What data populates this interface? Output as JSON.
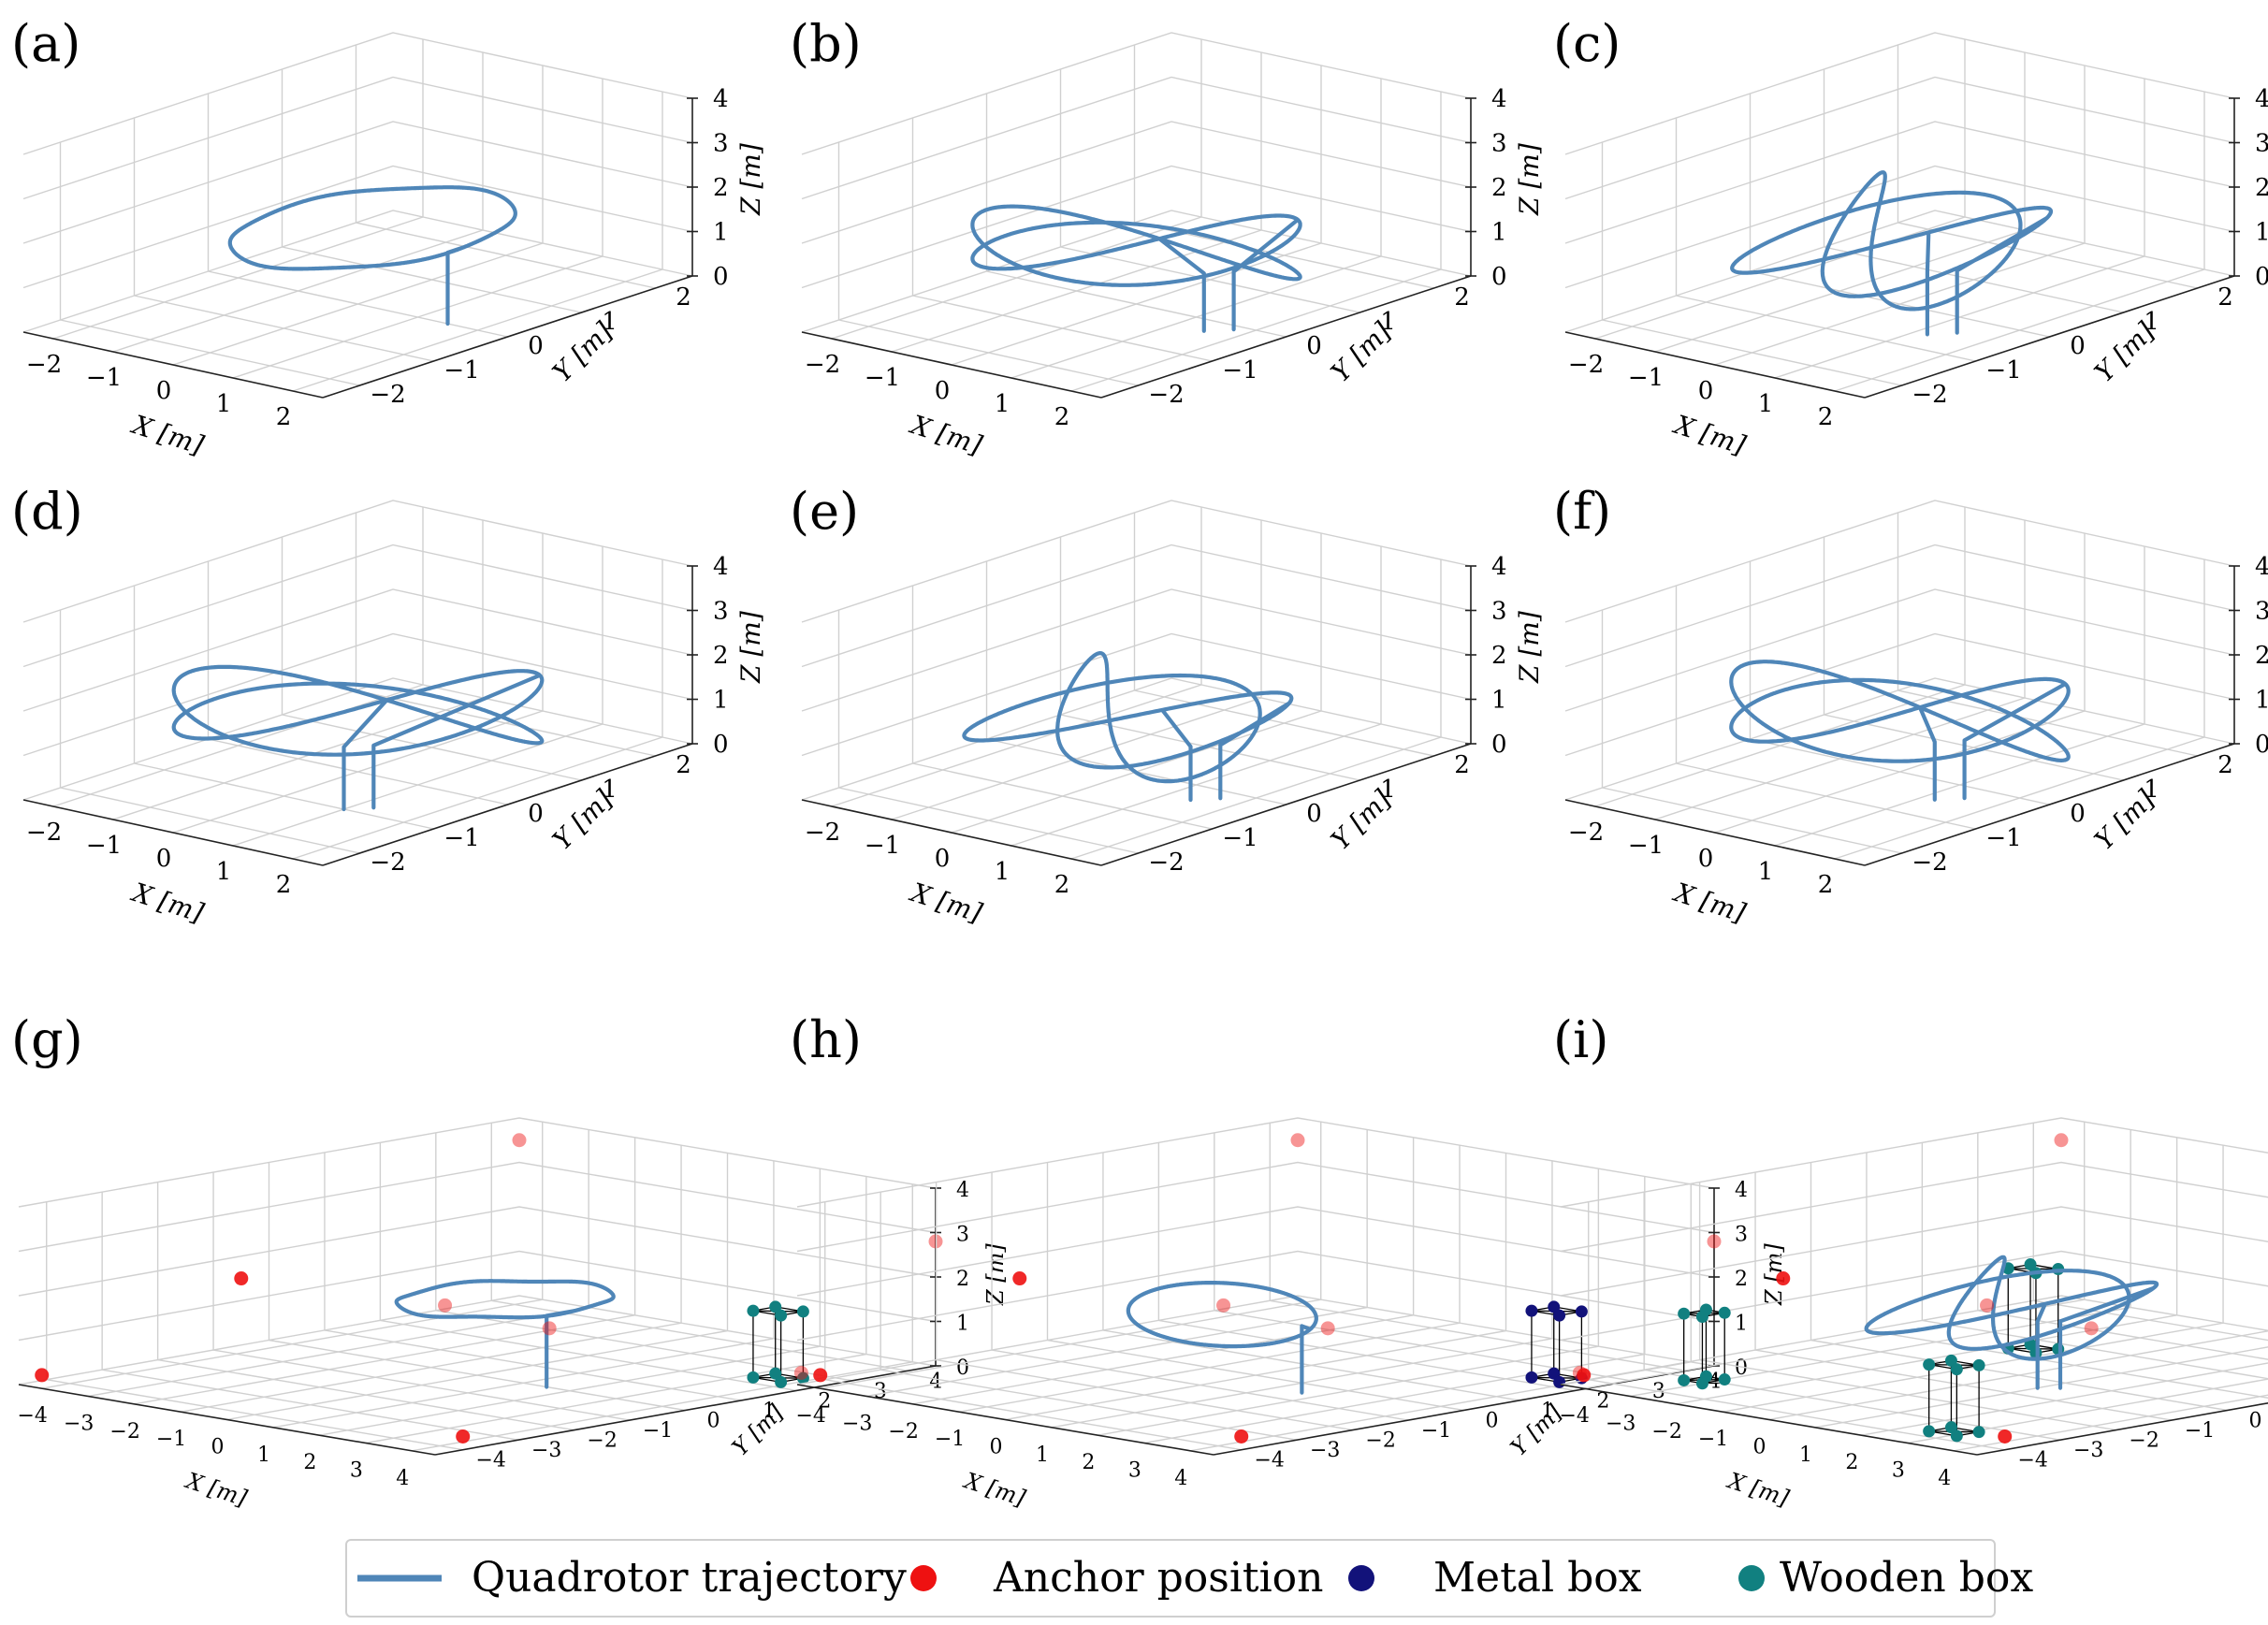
{
  "colors": {
    "trajectory": "#4f86b8",
    "anchor": "#ee1111",
    "metal": "#12127a",
    "wooden": "#118080",
    "grid": "#d0d0d0",
    "box_edge": "#000000"
  },
  "legend": {
    "placement": "bottom-center",
    "items": [
      {
        "label": "Quadrotor trajectory",
        "marker": "line",
        "color_key": "trajectory"
      },
      {
        "label": "Anchor position",
        "marker": "dot",
        "color_key": "anchor"
      },
      {
        "label": "Metal box",
        "marker": "dot",
        "color_key": "metal"
      },
      {
        "label": "Wooden box",
        "marker": "dot",
        "color_key": "wooden"
      }
    ]
  },
  "chart_data": [
    {
      "panel": "(a)",
      "type": "line3d",
      "xlabel": "X [m]",
      "ylabel": "Y [m]",
      "zlabel": "Z [m]",
      "xlim": [
        -2.5,
        2.5
      ],
      "ylim": [
        -2.5,
        2.5
      ],
      "zlim": [
        0,
        4
      ],
      "xticks": [
        "−2",
        "−1",
        "0",
        "1",
        "2"
      ],
      "yticks": [
        "−2",
        "−1",
        "0",
        "1",
        "2"
      ],
      "zticks": [
        "0",
        "1",
        "2",
        "3",
        "4"
      ],
      "trajectory": {
        "shape": "circle",
        "center": [
          0,
          0.2
        ],
        "radius": 1.5,
        "height": 1.6,
        "takeoff": [
          1.5,
          0.0
        ]
      }
    },
    {
      "panel": "(b)",
      "type": "line3d",
      "xlabel": "X [m]",
      "ylabel": "Y [m]",
      "zlabel": "Z [m]",
      "xlim": [
        -2.5,
        2.5
      ],
      "ylim": [
        -2.5,
        2.5
      ],
      "zlim": [
        0,
        4
      ],
      "xticks": [
        "−2",
        "−1",
        "0",
        "1",
        "2"
      ],
      "yticks": [
        "−2",
        "−1",
        "0",
        "1",
        "2"
      ],
      "zticks": [
        "0",
        "1",
        "2",
        "3",
        "4"
      ],
      "trajectory": {
        "shape": "figure-eight",
        "rx": 1.8,
        "ry": 0.8,
        "height": 1.3,
        "amplitude_z": 0.7,
        "takeoff": [
          1.5,
          -0.3
        ]
      }
    },
    {
      "panel": "(c)",
      "type": "line3d",
      "xlabel": "X [m]",
      "ylabel": "Y [m]",
      "zlabel": "Z [m]",
      "xlim": [
        -2.5,
        2.5
      ],
      "ylim": [
        -2.5,
        2.5
      ],
      "zlim": [
        0,
        4
      ],
      "xticks": [
        "−2",
        "−1",
        "0",
        "1",
        "2"
      ],
      "yticks": [
        "−2",
        "−1",
        "0",
        "1",
        "2"
      ],
      "zticks": [
        "0",
        "1",
        "2",
        "3",
        "4"
      ],
      "trajectory": {
        "shape": "lissajous",
        "rx": 1.6,
        "ry": 1.0,
        "height": 1.4,
        "amplitude_z": 0.6,
        "takeoff": [
          1.2,
          -0.6
        ]
      }
    },
    {
      "panel": "(d)",
      "type": "line3d",
      "xlabel": "X [m]",
      "ylabel": "Y [m]",
      "zlabel": "Z [m]",
      "xlim": [
        -2.5,
        2.5
      ],
      "ylim": [
        -2.5,
        2.5
      ],
      "zlim": [
        0,
        4
      ],
      "xticks": [
        "−2",
        "−1",
        "0",
        "1",
        "2"
      ],
      "yticks": [
        "−2",
        "−1",
        "0",
        "1",
        "2"
      ],
      "zticks": [
        "0",
        "1",
        "2",
        "3",
        "4"
      ],
      "trajectory": {
        "shape": "figure-eight",
        "rx": 1.9,
        "ry": 1.0,
        "height": 1.4,
        "amplitude_z": 0.8,
        "takeoff": [
          1.0,
          -1.0
        ]
      }
    },
    {
      "panel": "(e)",
      "type": "line3d",
      "xlabel": "X [m]",
      "ylabel": "Y [m]",
      "zlabel": "Z [m]",
      "xlim": [
        -2.5,
        2.5
      ],
      "ylim": [
        -2.5,
        2.5
      ],
      "zlim": [
        0,
        4
      ],
      "xticks": [
        "−2",
        "−1",
        "0",
        "1",
        "2"
      ],
      "yticks": [
        "−2",
        "−1",
        "0",
        "1",
        "2"
      ],
      "zticks": [
        "0",
        "1",
        "2",
        "3",
        "4"
      ],
      "trajectory": {
        "shape": "lissajous",
        "rx": 1.8,
        "ry": 0.9,
        "height": 1.2,
        "amplitude_z": 0.5,
        "takeoff": [
          1.4,
          -0.4
        ]
      }
    },
    {
      "panel": "(f)",
      "type": "line3d",
      "xlabel": "X [m]",
      "ylabel": "Y [m]",
      "zlabel": "Z [m]",
      "xlim": [
        -2.5,
        2.5
      ],
      "ylim": [
        -2.5,
        2.5
      ],
      "zlim": [
        0,
        4
      ],
      "xticks": [
        "−2",
        "−1",
        "0",
        "1",
        "2"
      ],
      "yticks": [
        "−2",
        "−1",
        "0",
        "1",
        "2"
      ],
      "zticks": [
        "0",
        "1",
        "2",
        "3",
        "4"
      ],
      "trajectory": {
        "shape": "figure-eight",
        "rx": 2.0,
        "ry": 0.7,
        "height": 1.3,
        "amplitude_z": 0.9,
        "takeoff": [
          1.2,
          -0.5
        ]
      }
    },
    {
      "panel": "(g)",
      "type": "line3d",
      "xlabel": "X [m]",
      "ylabel": "Y [m]",
      "zlabel": "Z [m]",
      "xlim": [
        -4.5,
        4.5
      ],
      "ylim": [
        -4.5,
        4.5
      ],
      "zlim": [
        0,
        4
      ],
      "xticks": [
        "−4",
        "−3",
        "−2",
        "−1",
        "0",
        "1",
        "2",
        "3",
        "4"
      ],
      "yticks": [
        "−4",
        "−3",
        "−2",
        "−1",
        "0",
        "1",
        "2",
        "3",
        "4"
      ],
      "zticks": [
        "0",
        "1",
        "2",
        "3",
        "4"
      ],
      "trajectory": {
        "shape": "circle",
        "center": [
          0,
          0.5
        ],
        "radius": 1.5,
        "height": 1.6,
        "takeoff": [
          1.5,
          0.0
        ]
      },
      "anchors": [
        [
          -4.5,
          4.5,
          3.5
        ],
        [
          4.5,
          4.5,
          2.8
        ],
        [
          -4.5,
          -0.5,
          1.5
        ],
        [
          -4.0,
          -4.5,
          0.3
        ],
        [
          4.5,
          -4.0,
          0.3
        ],
        [
          1.2,
          0.3,
          1.2
        ],
        [
          -2.5,
          1.5,
          0.8
        ],
        [
          4.0,
          2.5,
          0.2
        ]
      ],
      "boxes": [
        {
          "kind": "wooden",
          "center": [
            3.5,
            2.5,
            0.0
          ],
          "size": [
            0.6,
            0.4,
            1.5
          ]
        }
      ]
    },
    {
      "panel": "(h)",
      "type": "line3d",
      "xlabel": "X [m]",
      "ylabel": "Y [m]",
      "zlabel": "Z [m]",
      "xlim": [
        -4.5,
        4.5
      ],
      "ylim": [
        -4.5,
        4.5
      ],
      "zlim": [
        0,
        4
      ],
      "xticks": [
        "−4",
        "−3",
        "−2",
        "−1",
        "0",
        "1",
        "2",
        "3",
        "4"
      ],
      "yticks": [
        "−4",
        "−3",
        "−2",
        "−1",
        "0",
        "1",
        "2",
        "3",
        "4"
      ],
      "zticks": [
        "0",
        "1",
        "2",
        "3",
        "4"
      ],
      "trajectory": {
        "shape": "loop",
        "rx": 1.9,
        "ry": 0.6,
        "height": 1.5,
        "amplitude_z": 0.5,
        "takeoff": [
          1.6,
          -0.5
        ]
      },
      "anchors": [
        [
          -4.5,
          4.5,
          3.5
        ],
        [
          4.5,
          4.5,
          2.8
        ],
        [
          -4.5,
          -0.5,
          1.5
        ],
        [
          -4.0,
          -4.5,
          0.3
        ],
        [
          4.5,
          -4.0,
          0.3
        ],
        [
          1.2,
          0.3,
          1.2
        ],
        [
          -2.5,
          1.5,
          0.8
        ],
        [
          4.0,
          2.5,
          0.2
        ]
      ],
      "boxes": [
        {
          "kind": "metal",
          "center": [
            3.5,
            2.5,
            0.0
          ],
          "size": [
            0.6,
            0.4,
            1.5
          ]
        }
      ]
    },
    {
      "panel": "(i)",
      "type": "line3d",
      "xlabel": "X [m]",
      "ylabel": "Y [m]",
      "zlabel": "Z [m]",
      "xlim": [
        -4.5,
        4.5
      ],
      "ylim": [
        -4.5,
        4.5
      ],
      "zlim": [
        0,
        4
      ],
      "xticks": [
        "−4",
        "−3",
        "−2",
        "−1",
        "0",
        "1",
        "2",
        "3",
        "4"
      ],
      "yticks": [
        "−4",
        "−3",
        "−2",
        "−1",
        "0",
        "1",
        "2",
        "3",
        "4"
      ],
      "zticks": [
        "0",
        "1",
        "2",
        "3",
        "4"
      ],
      "trajectory": {
        "shape": "lissajous",
        "rx": 1.9,
        "ry": 1.2,
        "height": 1.5,
        "amplitude_z": 0.6,
        "takeoff": [
          1.0,
          -0.5
        ]
      },
      "anchors": [
        [
          -4.5,
          4.5,
          3.5
        ],
        [
          4.5,
          4.5,
          2.8
        ],
        [
          -4.5,
          -0.5,
          1.5
        ],
        [
          -4.0,
          -4.5,
          0.3
        ],
        [
          4.5,
          -4.0,
          0.3
        ],
        [
          1.2,
          0.3,
          1.2
        ],
        [
          -2.5,
          1.5,
          0.8
        ],
        [
          4.0,
          2.5,
          0.2
        ]
      ],
      "boxes": [
        {
          "kind": "wooden",
          "center": [
            -1.5,
            1.5,
            0.0
          ],
          "size": [
            0.6,
            0.4,
            1.8
          ]
        },
        {
          "kind": "wooden",
          "center": [
            -3.2,
            -3.0,
            0.0
          ],
          "size": [
            0.4,
            0.4,
            1.5
          ]
        },
        {
          "kind": "wooden",
          "center": [
            2.8,
            -3.5,
            0.0
          ],
          "size": [
            0.6,
            0.4,
            1.5
          ]
        },
        {
          "kind": "metal",
          "center": [
            3.5,
            2.5,
            0.0
          ],
          "size": [
            0.6,
            0.4,
            1.5
          ]
        }
      ]
    }
  ]
}
